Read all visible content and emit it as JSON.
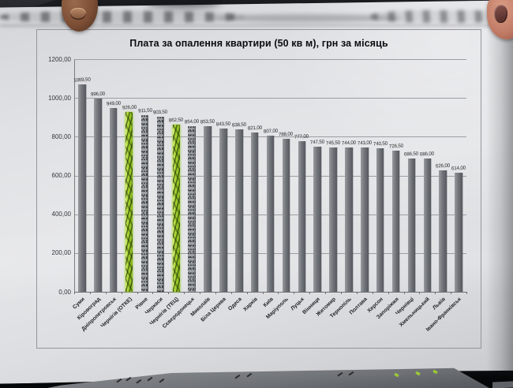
{
  "chart_data": {
    "type": "bar",
    "title": "Плата за опалення квартири (50 кв м), грн за місяць",
    "categories": [
      "Суми",
      "Кіровоград",
      "Дніпропетровськ",
      "Чернігів (ОТКЕ)",
      "Рівне",
      "Черкаси",
      "Чернігів (ТЕЦ)",
      "Сєвєродонецьк",
      "Миколаїв",
      "Біла Церква",
      "Одеса",
      "Харків",
      "Київ",
      "Маріуполь",
      "Луцьк",
      "Вінниця",
      "Житомир",
      "Тернопіль",
      "Полтава",
      "Херсон",
      "Запоріжжя",
      "Чернівці",
      "Хмельницький",
      "Львів",
      "Івано-Франківськ"
    ],
    "values": [
      1069.5,
      996,
      949,
      926,
      911.5,
      903.5,
      862.5,
      854,
      853.5,
      843.5,
      838.5,
      821,
      807,
      788,
      777,
      747.5,
      745.5,
      744,
      743,
      740.5,
      726.5,
      686.5,
      686,
      626,
      614
    ],
    "value_labels": [
      "1069,50",
      "996,00",
      "949,00",
      "926,00",
      "911,50",
      "903,50",
      "862,50",
      "854,00",
      "853,50",
      "843,50",
      "838,50",
      "821,00",
      "807,00",
      "788,00",
      "777,00",
      "747,50",
      "745,50",
      "744,00",
      "743,00",
      "740,50",
      "726,50",
      "686,50",
      "686,00",
      "626,00",
      "614,00"
    ],
    "y_ticks": [
      "0,00",
      "200,00",
      "400,00",
      "600,00",
      "800,00",
      "1000,00",
      "1200,00"
    ],
    "ylim": [
      0,
      1200
    ],
    "grid": true,
    "legend": false,
    "highlighted_indices": [
      3,
      6
    ],
    "highlight_color": "#a7d32f",
    "bar_color": "#73767b"
  }
}
